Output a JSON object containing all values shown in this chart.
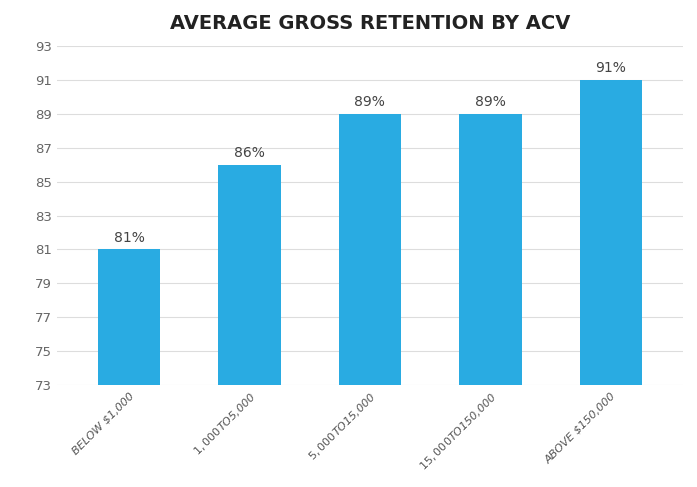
{
  "title": "AVERAGE GROSS RETENTION BY ACV",
  "categories": [
    "BELOW $1,000",
    "$1,000 TO $5,000",
    "$5,000 TO $15,000",
    "$15,000 TO $150,000",
    "ABOVE $150,000"
  ],
  "values": [
    81,
    86,
    89,
    89,
    91
  ],
  "labels": [
    "81%",
    "86%",
    "89%",
    "89%",
    "91%"
  ],
  "bar_color": "#29ABE2",
  "background_color": "#FFFFFF",
  "ylim_min": 73,
  "ylim_max": 93,
  "yticks": [
    73,
    75,
    77,
    79,
    81,
    83,
    85,
    87,
    89,
    91,
    93
  ],
  "title_fontsize": 14,
  "label_fontsize": 10,
  "tick_fontsize": 9.5,
  "xtick_fontsize": 8,
  "grid_color": "#DDDDDD",
  "grid_linewidth": 0.8,
  "bar_width": 0.52
}
